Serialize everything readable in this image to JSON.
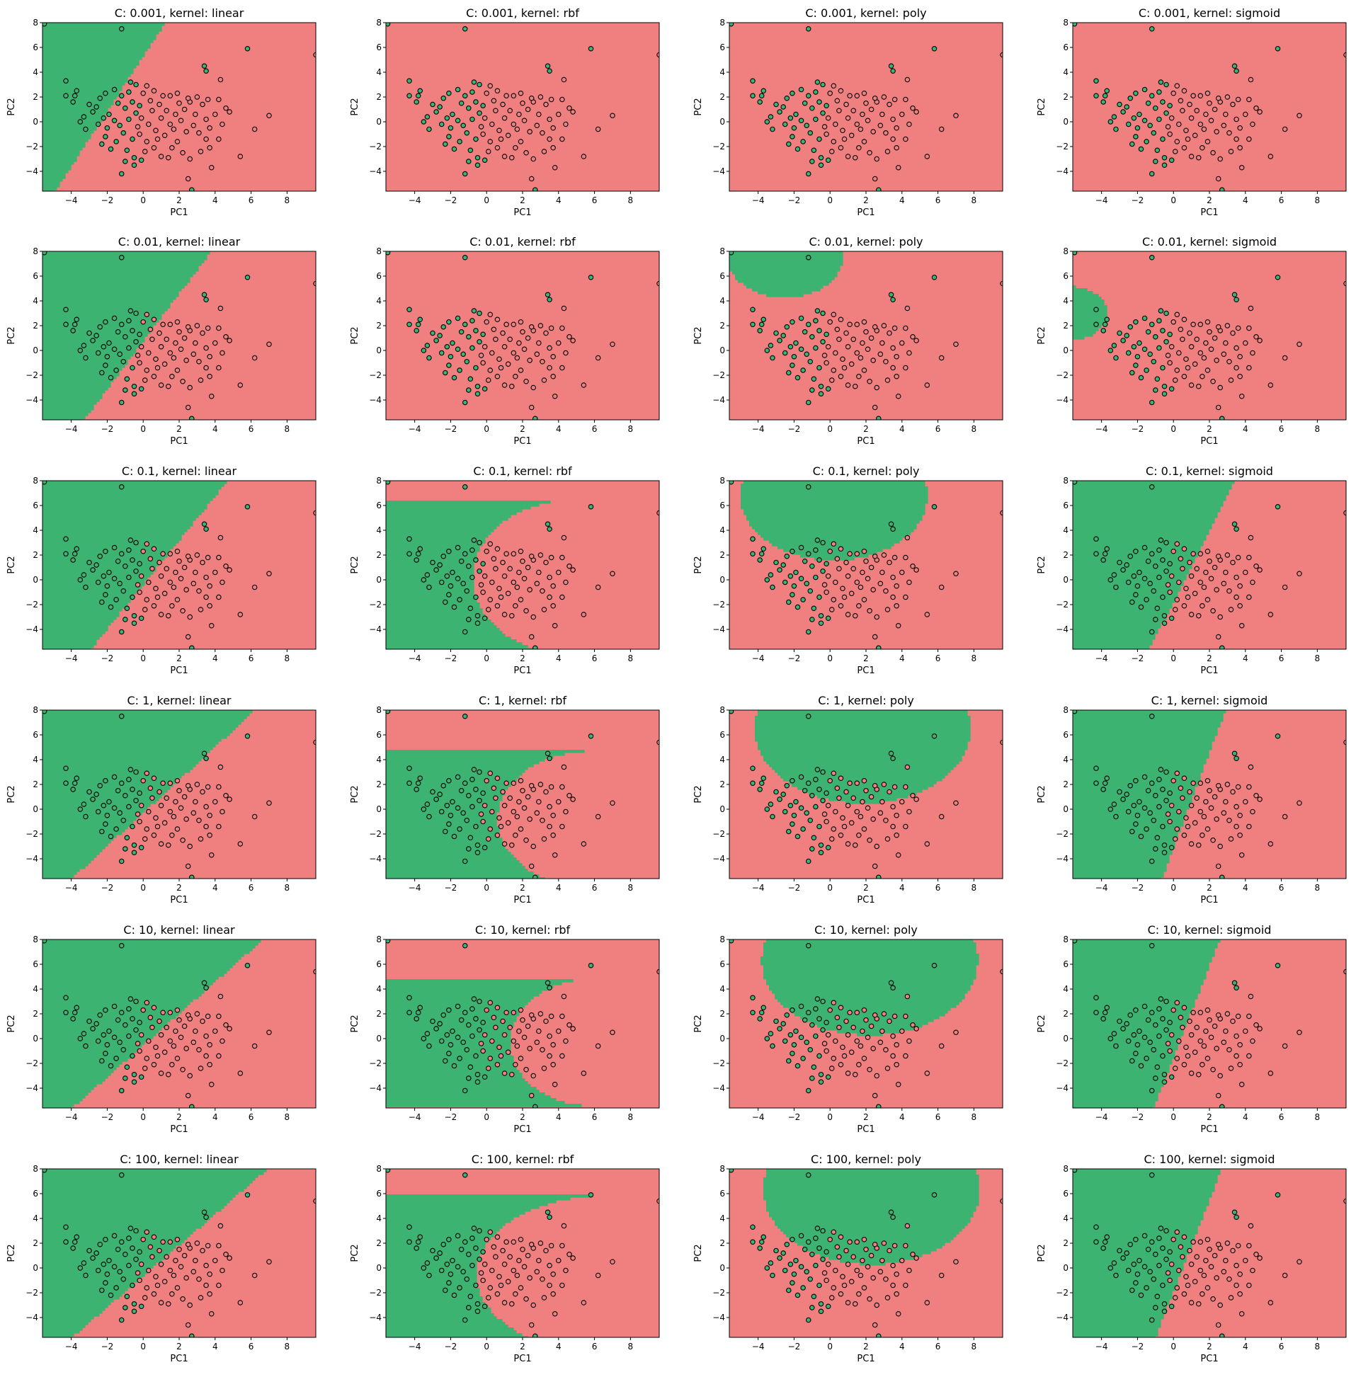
{
  "chart_data": {
    "type": "scatter",
    "layout": {
      "rows": 6,
      "cols": 4
    },
    "C_values": [
      "0.001",
      "0.01",
      "0.1",
      "1",
      "10",
      "100"
    ],
    "kernels": [
      "linear",
      "rbf",
      "poly",
      "sigmoid"
    ],
    "titles": [
      "C: 0.001, kernel: linear",
      "C: 0.001, kernel: rbf",
      "C: 0.001, kernel: poly",
      "C: 0.001, kernel: sigmoid",
      "C: 0.01, kernel: linear",
      "C: 0.01, kernel: rbf",
      "C: 0.01, kernel: poly",
      "C: 0.01, kernel: sigmoid",
      "C: 0.1, kernel: linear",
      "C: 0.1, kernel: rbf",
      "C: 0.1, kernel: poly",
      "C: 0.1, kernel: sigmoid",
      "C: 1, kernel: linear",
      "C: 1, kernel: rbf",
      "C: 1, kernel: poly",
      "C: 1, kernel: sigmoid",
      "C: 10, kernel: linear",
      "C: 10, kernel: rbf",
      "C: 10, kernel: poly",
      "C: 10, kernel: sigmoid",
      "C: 100, kernel: linear",
      "C: 100, kernel: rbf",
      "C: 100, kernel: poly",
      "C: 100, kernel: sigmoid"
    ],
    "xlabel": "PC1",
    "ylabel": "PC2",
    "xlim": [
      -5.6,
      9.6
    ],
    "ylim": [
      -5.6,
      8.0
    ],
    "xticks": [
      -4,
      -2,
      0,
      2,
      4,
      6,
      8
    ],
    "yticks": [
      -4,
      -2,
      0,
      2,
      4,
      6,
      8
    ],
    "grid": false,
    "colors": {
      "class_0": "#f08080",
      "class_1": "#3cb371",
      "edge": "#000000"
    },
    "points": [
      {
        "x": -5.5,
        "y": 7.9,
        "c": 1
      },
      {
        "x": -1.2,
        "y": 7.5,
        "c": 1
      },
      {
        "x": 5.8,
        "y": 5.9,
        "c": 1
      },
      {
        "x": 9.6,
        "y": 5.4,
        "c": 0
      },
      {
        "x": 3.4,
        "y": 4.5,
        "c": 1
      },
      {
        "x": 3.5,
        "y": 4.1,
        "c": 1
      },
      {
        "x": -4.3,
        "y": 3.3,
        "c": 1
      },
      {
        "x": -0.7,
        "y": 3.2,
        "c": 1
      },
      {
        "x": -0.4,
        "y": 3.0,
        "c": 1
      },
      {
        "x": 0.2,
        "y": 2.9,
        "c": 0
      },
      {
        "x": 4.3,
        "y": 3.4,
        "c": 0
      },
      {
        "x": -3.7,
        "y": 2.5,
        "c": 1
      },
      {
        "x": -3.8,
        "y": 2.1,
        "c": 1
      },
      {
        "x": -4.3,
        "y": 2.1,
        "c": 1
      },
      {
        "x": -3.9,
        "y": 1.6,
        "c": 1
      },
      {
        "x": -2.1,
        "y": 2.3,
        "c": 1
      },
      {
        "x": -1.6,
        "y": 2.6,
        "c": 1
      },
      {
        "x": -1.2,
        "y": 2.1,
        "c": 1
      },
      {
        "x": -0.8,
        "y": 2.4,
        "c": 1
      },
      {
        "x": 0.6,
        "y": 2.5,
        "c": 0
      },
      {
        "x": 1.5,
        "y": 2.1,
        "c": 0
      },
      {
        "x": 1.9,
        "y": 2.3,
        "c": 0
      },
      {
        "x": 3.0,
        "y": 2.0,
        "c": 0
      },
      {
        "x": 3.6,
        "y": 1.8,
        "c": 0
      },
      {
        "x": 4.2,
        "y": 1.8,
        "c": 0
      },
      {
        "x": 2.6,
        "y": 1.6,
        "c": 0
      },
      {
        "x": 3.3,
        "y": 1.4,
        "c": 0
      },
      {
        "x": 4.8,
        "y": 0.8,
        "c": 0
      },
      {
        "x": 4.0,
        "y": 0.6,
        "c": 0
      },
      {
        "x": 3.5,
        "y": 0.2,
        "c": 0
      },
      {
        "x": 4.4,
        "y": -0.2,
        "c": 0
      },
      {
        "x": 7.0,
        "y": 0.5,
        "c": 0
      },
      {
        "x": 6.2,
        "y": -0.6,
        "c": 0
      },
      {
        "x": 3.7,
        "y": -0.5,
        "c": 0
      },
      {
        "x": 3.1,
        "y": -0.9,
        "c": 0
      },
      {
        "x": 3.5,
        "y": -1.4,
        "c": 0
      },
      {
        "x": 4.2,
        "y": -1.4,
        "c": 0
      },
      {
        "x": 3.7,
        "y": -2.1,
        "c": 0
      },
      {
        "x": 5.4,
        "y": -2.8,
        "c": 0
      },
      {
        "x": 3.8,
        "y": -3.7,
        "c": 0
      },
      {
        "x": 2.6,
        "y": -3.0,
        "c": 0
      },
      {
        "x": 2.5,
        "y": -4.6,
        "c": 0
      },
      {
        "x": 2.7,
        "y": -5.5,
        "c": 1
      },
      {
        "x": 1.0,
        "y": -2.8,
        "c": 0
      },
      {
        "x": 1.6,
        "y": -2.1,
        "c": 0
      },
      {
        "x": -0.5,
        "y": -2.9,
        "c": 1
      },
      {
        "x": -0.1,
        "y": -3.1,
        "c": 1
      },
      {
        "x": -1.0,
        "y": -3.2,
        "c": 1
      },
      {
        "x": -0.5,
        "y": -3.5,
        "c": 1
      },
      {
        "x": -1.2,
        "y": -4.2,
        "c": 1
      },
      {
        "x": -1.8,
        "y": -2.2,
        "c": 1
      },
      {
        "x": -2.3,
        "y": -1.8,
        "c": 1
      },
      {
        "x": -2.1,
        "y": -1.2,
        "c": 1
      },
      {
        "x": -3.2,
        "y": -0.6,
        "c": 1
      },
      {
        "x": -3.3,
        "y": 0.4,
        "c": 1
      },
      {
        "x": -2.8,
        "y": 0.8,
        "c": 1
      },
      {
        "x": -2.6,
        "y": 1.2,
        "c": 1
      },
      {
        "x": -1.9,
        "y": 0.6,
        "c": 1
      },
      {
        "x": -1.4,
        "y": 1.5,
        "c": 1
      },
      {
        "x": -1.0,
        "y": 1.1,
        "c": 1
      },
      {
        "x": -0.6,
        "y": 1.6,
        "c": 1
      },
      {
        "x": -0.2,
        "y": 1.3,
        "c": 1
      },
      {
        "x": 0.4,
        "y": 1.7,
        "c": 0
      },
      {
        "x": 0.9,
        "y": 1.4,
        "c": 0
      },
      {
        "x": 1.3,
        "y": 0.9,
        "c": 0
      },
      {
        "x": 1.8,
        "y": 0.6,
        "c": 0
      },
      {
        "x": 2.3,
        "y": 1.0,
        "c": 0
      },
      {
        "x": 2.1,
        "y": 0.1,
        "c": 0
      },
      {
        "x": 2.8,
        "y": -0.3,
        "c": 0
      },
      {
        "x": 2.4,
        "y": -0.8,
        "c": 0
      },
      {
        "x": 1.7,
        "y": -0.6,
        "c": 0
      },
      {
        "x": 1.2,
        "y": -1.1,
        "c": 0
      },
      {
        "x": 0.7,
        "y": -0.7,
        "c": 0
      },
      {
        "x": 0.3,
        "y": -0.2,
        "c": 0
      },
      {
        "x": -0.1,
        "y": 0.3,
        "c": 0
      },
      {
        "x": -0.4,
        "y": 0.7,
        "c": 1
      },
      {
        "x": -0.8,
        "y": 0.2,
        "c": 1
      },
      {
        "x": -1.3,
        "y": -0.3,
        "c": 1
      },
      {
        "x": -1.6,
        "y": 0.1,
        "c": 1
      },
      {
        "x": -2.0,
        "y": -0.5,
        "c": 1
      },
      {
        "x": -1.1,
        "y": -0.9,
        "c": 1
      },
      {
        "x": -0.6,
        "y": -1.4,
        "c": 1
      },
      {
        "x": -0.2,
        "y": -1.0,
        "c": 0
      },
      {
        "x": 0.2,
        "y": -1.6,
        "c": 0
      },
      {
        "x": 0.6,
        "y": -2.1,
        "c": 0
      },
      {
        "x": 1.9,
        "y": -1.6,
        "c": 0
      },
      {
        "x": 2.9,
        "y": 0.6,
        "c": 0
      },
      {
        "x": 2.5,
        "y": 1.9,
        "c": 0
      },
      {
        "x": 1.1,
        "y": 2.1,
        "c": 0
      },
      {
        "x": -2.4,
        "y": 1.9,
        "c": 1
      },
      {
        "x": -3.0,
        "y": 1.4,
        "c": 1
      },
      {
        "x": -2.5,
        "y": -0.2,
        "c": 1
      },
      {
        "x": -1.5,
        "y": -1.6,
        "c": 1
      },
      {
        "x": -0.9,
        "y": -2.3,
        "c": 1
      },
      {
        "x": 0.1,
        "y": -2.4,
        "c": 0
      },
      {
        "x": 1.4,
        "y": -2.9,
        "c": 0
      },
      {
        "x": 2.2,
        "y": -2.5,
        "c": 0
      },
      {
        "x": 3.2,
        "y": -2.4,
        "c": 0
      },
      {
        "x": 4.6,
        "y": 1.1,
        "c": 0
      },
      {
        "x": 0.0,
        "y": 2.3,
        "c": 0
      },
      {
        "x": -3.5,
        "y": 0.0,
        "c": 1
      },
      {
        "x": -2.2,
        "y": 0.3,
        "c": 1
      },
      {
        "x": 1.0,
        "y": 0.3,
        "c": 0
      },
      {
        "x": 1.5,
        "y": -0.2,
        "c": 0
      },
      {
        "x": 0.5,
        "y": 0.9,
        "c": 0
      },
      {
        "x": -0.3,
        "y": -0.4,
        "c": 0
      },
      {
        "x": 2.0,
        "y": 1.5,
        "c": 0
      },
      {
        "x": 0.8,
        "y": -1.4,
        "c": 0
      }
    ],
    "regions": [
      {
        "kernel": "linear",
        "C": "0.001",
        "type": "linear",
        "w": [
          1,
          -0.45
        ],
        "b": 2.4
      },
      {
        "kernel": "rbf",
        "C": "0.001",
        "type": "none"
      },
      {
        "kernel": "poly",
        "C": "0.001",
        "type": "none"
      },
      {
        "kernel": "sigmoid",
        "C": "0.001",
        "type": "none"
      },
      {
        "kernel": "linear",
        "C": "0.01",
        "type": "linear",
        "w": [
          1,
          -0.52
        ],
        "b": 0.4
      },
      {
        "kernel": "rbf",
        "C": "0.01",
        "type": "none"
      },
      {
        "kernel": "poly",
        "C": "0.01",
        "type": "poly",
        "x0": -2.5,
        "y0": 7.5,
        "r": 3.2
      },
      {
        "kernel": "sigmoid",
        "C": "0.01",
        "type": "poly",
        "x0": -5.9,
        "y0": 3.0,
        "r": 2.2
      },
      {
        "kernel": "linear",
        "C": "0.1",
        "type": "linear",
        "w": [
          1,
          -0.56
        ],
        "b": -0.2
      },
      {
        "kernel": "rbf",
        "C": "0.1",
        "type": "rbf",
        "cx": 5.0,
        "cy": 0.2,
        "rx": 5.8,
        "ry": 6.3
      },
      {
        "kernel": "poly",
        "C": "0.1",
        "type": "poly",
        "x0": 0.2,
        "y0": 6.8,
        "r": 5.2
      },
      {
        "kernel": "sigmoid",
        "C": "0.1",
        "type": "linear",
        "w": [
          1,
          -0.35
        ],
        "b": -0.6
      },
      {
        "kernel": "linear",
        "C": "1",
        "type": "linear",
        "w": [
          1,
          -0.75
        ],
        "b": -0.2
      },
      {
        "kernel": "rbf",
        "C": "1",
        "type": "rbf",
        "cx": 5.8,
        "cy": -0.8,
        "rx": 5.2,
        "ry": 5.5
      },
      {
        "kernel": "poly",
        "C": "1",
        "type": "poly",
        "x0": 1.8,
        "y0": 6.5,
        "r": 6.0
      },
      {
        "kernel": "sigmoid",
        "C": "1",
        "type": "linear",
        "w": [
          1,
          -0.26
        ],
        "b": -0.8
      },
      {
        "kernel": "linear",
        "C": "10",
        "type": "linear",
        "w": [
          1,
          -0.78
        ],
        "b": -0.4
      },
      {
        "kernel": "rbf",
        "C": "10",
        "type": "rbf",
        "cx": 5.8,
        "cy": -0.3,
        "rx": 4.5,
        "ry": 5.1
      },
      {
        "kernel": "poly",
        "C": "10",
        "type": "poly",
        "x0": 2.2,
        "y0": 6.3,
        "r": 6.0
      },
      {
        "kernel": "sigmoid",
        "C": "10",
        "type": "linear",
        "w": [
          1,
          -0.27
        ],
        "b": -0.4
      },
      {
        "kernel": "linear",
        "C": "100",
        "type": "linear",
        "w": [
          1,
          -0.8
        ],
        "b": -0.5
      },
      {
        "kernel": "rbf",
        "C": "100",
        "type": "rbf",
        "cx": 6.8,
        "cy": -0.5,
        "rx": 7.4,
        "ry": 6.4
      },
      {
        "kernel": "poly",
        "C": "100",
        "type": "poly",
        "x0": 2.3,
        "y0": 6.3,
        "r": 6.0
      },
      {
        "kernel": "sigmoid",
        "C": "100",
        "type": "linear",
        "w": [
          1,
          -0.27
        ],
        "b": -0.5
      }
    ]
  }
}
